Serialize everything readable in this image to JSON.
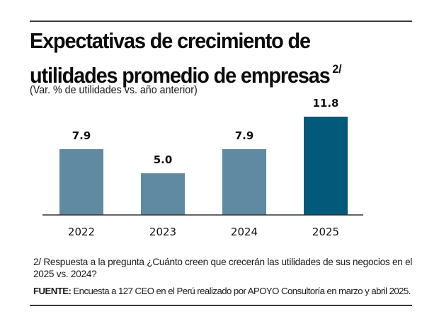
{
  "header": {
    "title_line1": "Expectativas de crecimiento de",
    "title_line2": "utilidades promedio de empresas",
    "title_note_marker": "2/",
    "subtitle": "(Var. % de utilidades vs. año anterior)"
  },
  "chart_data": {
    "type": "bar",
    "title": "Expectativas de crecimiento de utilidades promedio de empresas 2/",
    "subtitle": "(Var. % de utilidades vs. año anterior)",
    "xlabel": "",
    "ylabel": "",
    "categories": [
      "2022",
      "2023",
      "2024",
      "2025"
    ],
    "values": [
      7.9,
      5.0,
      7.9,
      11.8
    ],
    "value_labels": [
      "7.9",
      "5.0",
      "7.9",
      "11.8"
    ],
    "ylim": [
      0,
      11.8
    ],
    "grid": false,
    "legend": "none",
    "bar_colors": [
      "#5f8aa1",
      "#5f8aa1",
      "#5f8aa1",
      "#03597a"
    ],
    "highlight_category": "2025"
  },
  "footer": {
    "note": "2/ Respuesta a la pregunta ¿Cuánto creen que crecerán las utilidades de sus negocios en el 2025 vs. 2024?",
    "source_label": "FUENTE:",
    "source_text": " Encuesta a 127 CEO en el Perú realizado por APOYO Consultoría en marzo y abril 2025."
  }
}
